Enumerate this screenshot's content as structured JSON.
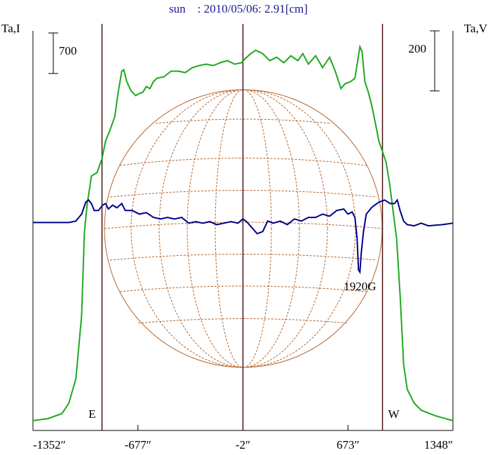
{
  "chart_data": {
    "type": "line",
    "title": "sun    : 2010/05/06: 2.91[cm]",
    "ylabel": "Ta,I",
    "y2label": "Ta,V",
    "xlim": [
      -1352,
      1348
    ],
    "xticks": [
      {
        "value": -1352,
        "label": "-1352″"
      },
      {
        "value": -677,
        "label": "-677″"
      },
      {
        "value": -2,
        "label": "-2″"
      },
      {
        "value": 673,
        "label": "673″"
      },
      {
        "value": 1348,
        "label": "1348″"
      }
    ],
    "ylim": [
      0,
      6900
    ],
    "y2lim": [
      -690,
      640
    ],
    "scale_bars": [
      {
        "label": "700",
        "value": 700,
        "axis": "y"
      },
      {
        "label": "200",
        "value": 200,
        "axis": "y2"
      }
    ],
    "limb_lines": [
      {
        "x": -908,
        "label": "E"
      },
      {
        "x": -2
      },
      {
        "x": 895,
        "label": "W"
      }
    ],
    "annotations": [
      {
        "text": "1920G",
        "x": 750
      }
    ],
    "series": [
      {
        "name": "Ta,I",
        "color": "#1fa81f",
        "x": [
          -1352,
          -1257,
          -1166,
          -1121,
          -1076,
          -1039,
          -1021,
          -1003,
          -976,
          -940,
          -908,
          -885,
          -858,
          -826,
          -804,
          -781,
          -768,
          -749,
          -722,
          -691,
          -668,
          -645,
          -623,
          -600,
          -577,
          -555,
          -509,
          -464,
          -419,
          -373,
          -328,
          -283,
          -238,
          -192,
          -147,
          -102,
          -56,
          -11,
          12,
          48,
          80,
          125,
          170,
          215,
          261,
          306,
          351,
          383,
          419,
          465,
          510,
          555,
          591,
          628,
          655,
          691,
          718,
          736,
          750,
          764,
          782,
          804,
          827,
          850,
          872,
          895,
          918,
          940,
          963,
          986,
          1008,
          1031,
          1054,
          1099,
          1144,
          1235,
          1348
        ],
        "values": [
          169,
          205,
          290,
          471,
          893,
          1979,
          3428,
          3911,
          4393,
          4454,
          4695,
          4997,
          5178,
          5419,
          5842,
          6204,
          6228,
          6023,
          5866,
          5782,
          5818,
          5842,
          5938,
          5902,
          6023,
          6083,
          6107,
          6204,
          6204,
          6180,
          6264,
          6301,
          6325,
          6301,
          6349,
          6385,
          6325,
          6349,
          6421,
          6506,
          6566,
          6506,
          6385,
          6445,
          6349,
          6470,
          6385,
          6506,
          6325,
          6470,
          6264,
          6445,
          6204,
          5902,
          5987,
          6023,
          6083,
          6385,
          6626,
          6542,
          6023,
          5842,
          5600,
          5299,
          4997,
          4816,
          4635,
          4273,
          3790,
          3307,
          2342,
          1135,
          712,
          471,
          350,
          253,
          169
        ]
      },
      {
        "name": "Ta,V",
        "color": "#00008b",
        "axis": "y2",
        "x": [
          -1352,
          -1121,
          -1076,
          -1039,
          -1012,
          -994,
          -976,
          -958,
          -931,
          -904,
          -885,
          -867,
          -840,
          -813,
          -781,
          -759,
          -713,
          -668,
          -623,
          -577,
          -532,
          -487,
          -441,
          -396,
          -351,
          -306,
          -260,
          -215,
          -170,
          -124,
          -79,
          -34,
          -2,
          21,
          57,
          89,
          125,
          157,
          193,
          238,
          283,
          329,
          374,
          419,
          465,
          510,
          555,
          600,
          646,
          673,
          700,
          718,
          732,
          741,
          750,
          759,
          773,
          791,
          827,
          872,
          909,
          945,
          972,
          990,
          1008,
          1031,
          1054,
          1099,
          1144,
          1190,
          1280,
          1348
        ],
        "values": [
          2,
          2,
          7,
          30,
          70,
          77,
          65,
          42,
          42,
          60,
          65,
          47,
          60,
          51,
          65,
          42,
          42,
          30,
          35,
          19,
          14,
          19,
          14,
          19,
          0,
          5,
          0,
          5,
          -5,
          0,
          5,
          0,
          14,
          5,
          -16,
          -35,
          -28,
          7,
          0,
          7,
          -5,
          14,
          7,
          19,
          19,
          30,
          23,
          42,
          47,
          30,
          37,
          19,
          -51,
          -156,
          -163,
          -98,
          -28,
          30,
          53,
          70,
          77,
          65,
          65,
          77,
          42,
          7,
          -5,
          -9,
          0,
          -9,
          -5,
          0
        ]
      }
    ]
  }
}
